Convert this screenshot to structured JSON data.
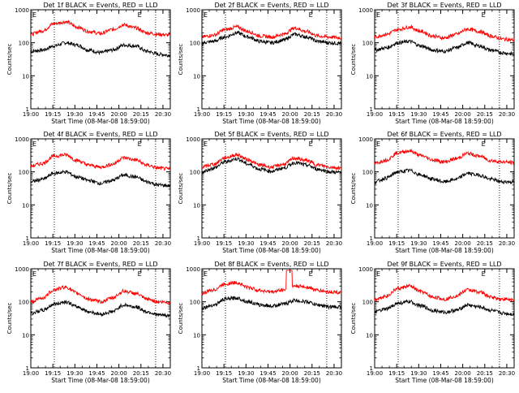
{
  "figure": {
    "ylabel": "Counts/sec",
    "xlabel": "Start Time (08-Mar-08 18:59:00)",
    "colors": {
      "events": "#000000",
      "lld": "#ff0000",
      "axes": "#000000",
      "background": "#ffffff"
    },
    "markers": {
      "left_label": "E",
      "right_label": "E"
    }
  },
  "chart_data": [
    {
      "id": "1f",
      "type": "line",
      "title": "Det 1f BLACK = Events, RED = LLD",
      "x_ticks": [
        "19:00",
        "19:15",
        "19:30",
        "19:45",
        "20:00",
        "20:15",
        "20:30"
      ],
      "y_ticks": [
        "1",
        "10",
        "100",
        "1000"
      ],
      "ylim": [
        1,
        1000
      ],
      "y_scale": "log",
      "series": [
        {
          "name": "Events",
          "values": [
            55,
            60,
            80,
            100,
            85,
            60,
            50,
            60,
            85,
            80,
            55,
            45,
            42
          ]
        },
        {
          "name": "LLD",
          "values": [
            180,
            230,
            380,
            430,
            300,
            220,
            190,
            250,
            350,
            280,
            200,
            180,
            170
          ]
        }
      ]
    },
    {
      "id": "2f",
      "type": "line",
      "title": "Det 2f BLACK = Events, RED = LLD",
      "x_ticks": [
        "19:00",
        "19:15",
        "19:30",
        "19:45",
        "20:00",
        "20:15",
        "20:30"
      ],
      "y_ticks": [
        "1",
        "10",
        "100",
        "1000"
      ],
      "ylim": [
        1,
        1000
      ],
      "y_scale": "log",
      "series": [
        {
          "name": "Events",
          "values": [
            100,
            110,
            150,
            200,
            150,
            110,
            100,
            120,
            180,
            150,
            110,
            100,
            95
          ]
        },
        {
          "name": "LLD",
          "values": [
            150,
            170,
            250,
            300,
            220,
            160,
            150,
            180,
            280,
            220,
            160,
            150,
            140
          ]
        }
      ]
    },
    {
      "id": "3f",
      "type": "line",
      "title": "Det 3f BLACK = Events, RED = LLD",
      "x_ticks": [
        "19:00",
        "19:15",
        "19:30",
        "19:45",
        "20:00",
        "20:15",
        "20:30"
      ],
      "y_ticks": [
        "1",
        "10",
        "100",
        "1000"
      ],
      "ylim": [
        1,
        1000
      ],
      "y_scale": "log",
      "series": [
        {
          "name": "Events",
          "values": [
            60,
            70,
            100,
            110,
            80,
            60,
            55,
            70,
            100,
            80,
            60,
            50,
            45
          ]
        },
        {
          "name": "LLD",
          "values": [
            150,
            180,
            250,
            300,
            220,
            160,
            140,
            180,
            260,
            220,
            160,
            130,
            120
          ]
        }
      ]
    },
    {
      "id": "4f",
      "type": "line",
      "title": "Det 4f BLACK = Events, RED = LLD",
      "x_ticks": [
        "19:00",
        "19:15",
        "19:30",
        "19:45",
        "20:00",
        "20:15",
        "20:30"
      ],
      "y_ticks": [
        "1",
        "10",
        "100",
        "1000"
      ],
      "ylim": [
        1,
        1000
      ],
      "y_scale": "log",
      "series": [
        {
          "name": "Events",
          "values": [
            50,
            60,
            90,
            100,
            70,
            55,
            45,
            55,
            80,
            70,
            50,
            40,
            38
          ]
        },
        {
          "name": "LLD",
          "values": [
            150,
            180,
            300,
            330,
            220,
            160,
            140,
            170,
            270,
            230,
            160,
            130,
            120
          ]
        }
      ]
    },
    {
      "id": "5f",
      "type": "line",
      "title": "Det 5f BLACK = Events, RED = LLD",
      "x_ticks": [
        "19:00",
        "19:15",
        "19:30",
        "19:45",
        "20:00",
        "20:15",
        "20:30"
      ],
      "y_ticks": [
        "1",
        "10",
        "100",
        "1000"
      ],
      "ylim": [
        1,
        1000
      ],
      "y_scale": "log",
      "series": [
        {
          "name": "Events",
          "values": [
            100,
            130,
            200,
            250,
            170,
            120,
            105,
            130,
            190,
            160,
            120,
            100,
            95
          ]
        },
        {
          "name": "LLD",
          "values": [
            140,
            170,
            270,
            330,
            230,
            160,
            140,
            170,
            260,
            220,
            160,
            140,
            130
          ]
        }
      ]
    },
    {
      "id": "6f",
      "type": "line",
      "title": "Det 6f BLACK = Events, RED = LLD",
      "x_ticks": [
        "19:00",
        "19:15",
        "19:30",
        "19:45",
        "20:00",
        "20:15",
        "20:30"
      ],
      "y_ticks": [
        "1",
        "10",
        "100",
        "1000"
      ],
      "ylim": [
        1,
        1000
      ],
      "y_scale": "log",
      "series": [
        {
          "name": "Events",
          "values": [
            50,
            65,
            100,
            110,
            80,
            60,
            50,
            60,
            90,
            80,
            60,
            50,
            50
          ]
        },
        {
          "name": "LLD",
          "values": [
            180,
            230,
            380,
            430,
            310,
            230,
            200,
            250,
            360,
            300,
            220,
            200,
            190
          ]
        }
      ]
    },
    {
      "id": "7f",
      "type": "line",
      "title": "Det 7f BLACK = Events, RED = LLD",
      "x_ticks": [
        "19:00",
        "19:15",
        "19:30",
        "19:45",
        "20:00",
        "20:15",
        "20:30"
      ],
      "y_ticks": [
        "1",
        "10",
        "100",
        "1000"
      ],
      "ylim": [
        1,
        1000
      ],
      "y_scale": "log",
      "series": [
        {
          "name": "Events",
          "values": [
            45,
            55,
            85,
            100,
            70,
            50,
            42,
            50,
            80,
            70,
            50,
            40,
            38
          ]
        },
        {
          "name": "LLD",
          "values": [
            100,
            130,
            230,
            280,
            180,
            120,
            100,
            130,
            210,
            180,
            120,
            100,
            95
          ]
        }
      ]
    },
    {
      "id": "8f",
      "type": "line",
      "title": "Det 8f BLACK = Events, RED = LLD",
      "x_ticks": [
        "19:00",
        "19:15",
        "19:30",
        "19:45",
        "20:00",
        "20:15",
        "20:30"
      ],
      "y_ticks": [
        "1",
        "10",
        "100",
        "1000"
      ],
      "ylim": [
        1,
        1000
      ],
      "y_scale": "log",
      "series": [
        {
          "name": "Events",
          "values": [
            65,
            80,
            120,
            130,
            100,
            80,
            75,
            85,
            110,
            100,
            80,
            70,
            70
          ]
        },
        {
          "name": "LLD",
          "values": [
            180,
            230,
            350,
            380,
            270,
            220,
            200,
            230,
            300,
            280,
            220,
            200,
            190
          ]
        }
      ]
    },
    {
      "id": "9f",
      "type": "line",
      "title": "Det 9f BLACK = Events, RED = LLD",
      "x_ticks": [
        "19:00",
        "19:15",
        "19:30",
        "19:45",
        "20:00",
        "20:15",
        "20:30"
      ],
      "y_ticks": [
        "1",
        "10",
        "100",
        "1000"
      ],
      "ylim": [
        1,
        1000
      ],
      "y_scale": "log",
      "series": [
        {
          "name": "Events",
          "values": [
            50,
            60,
            90,
            100,
            75,
            55,
            48,
            55,
            80,
            70,
            55,
            45,
            42
          ]
        },
        {
          "name": "LLD",
          "values": [
            120,
            150,
            250,
            300,
            200,
            140,
            120,
            150,
            230,
            200,
            140,
            120,
            115
          ]
        }
      ]
    }
  ]
}
